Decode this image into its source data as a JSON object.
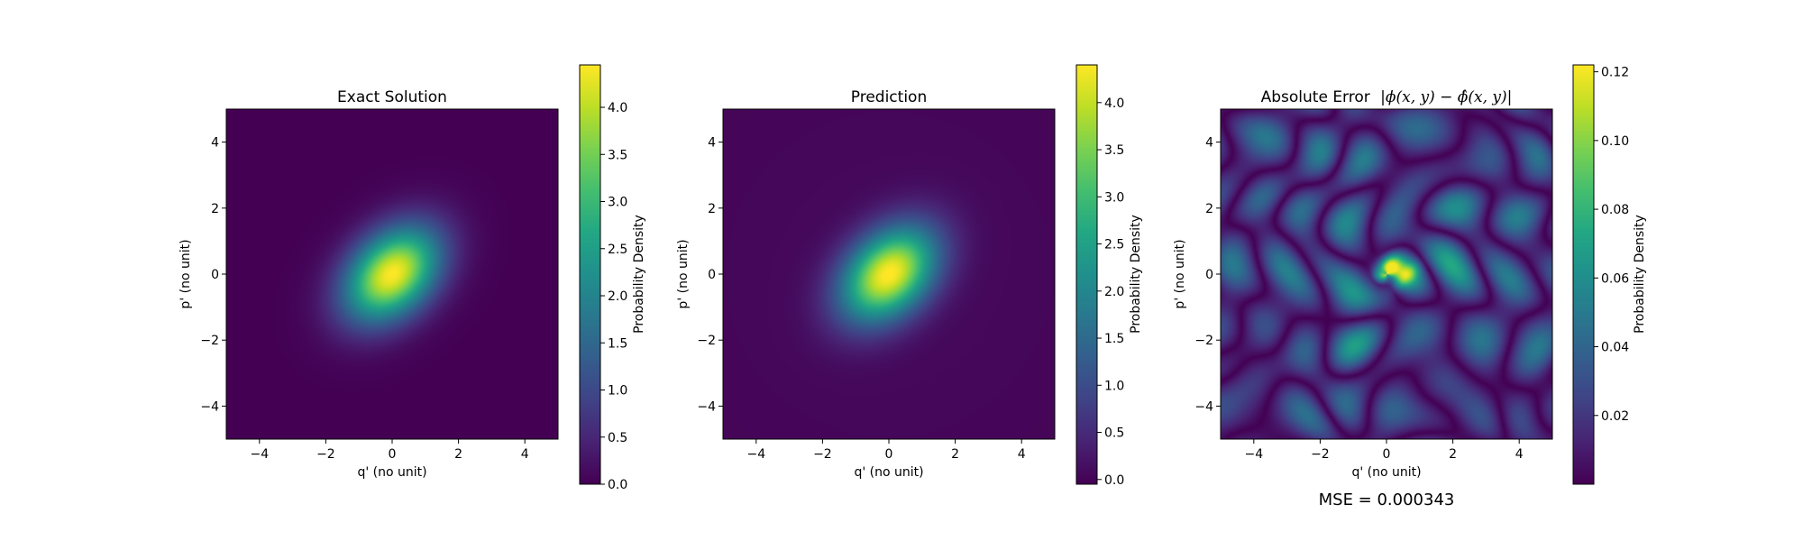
{
  "figure": {
    "mse_text": "MSE = 0.000343"
  },
  "chart_data": [
    {
      "type": "heatmap",
      "title": "Exact Solution",
      "xlabel": "q' (no unit)",
      "ylabel": "p' (no unit)",
      "xlim": [
        -5,
        5
      ],
      "ylim": [
        -5,
        5
      ],
      "x_ticks": [
        -4,
        -2,
        0,
        2,
        4
      ],
      "y_ticks": [
        -4,
        -2,
        0,
        2,
        4
      ],
      "colormap": "viridis",
      "colorbar": {
        "label": "Probability Density",
        "range": [
          0.0,
          4.45
        ],
        "ticks": [
          0.0,
          0.5,
          1.0,
          1.5,
          2.0,
          2.5,
          3.0,
          3.5,
          4.0
        ],
        "tick_labels": [
          "0.0",
          "0.5",
          "1.0",
          "1.5",
          "2.0",
          "2.5",
          "3.0",
          "3.5",
          "4.0"
        ]
      },
      "field": {
        "kind": "gaussian",
        "peak": 4.45,
        "center": [
          0,
          0
        ],
        "sigma_major": 1.15,
        "sigma_minor": 0.8,
        "angle_deg": 45
      }
    },
    {
      "type": "heatmap",
      "title": "Prediction",
      "xlabel": "q' (no unit)",
      "ylabel": "p' (no unit)",
      "xlim": [
        -5,
        5
      ],
      "ylim": [
        -5,
        5
      ],
      "x_ticks": [
        -4,
        -2,
        0,
        2,
        4
      ],
      "y_ticks": [
        -4,
        -2,
        0,
        2,
        4
      ],
      "colormap": "viridis",
      "colorbar": {
        "label": "Probability Density",
        "range": [
          -0.05,
          4.4
        ],
        "ticks": [
          0.0,
          0.5,
          1.0,
          1.5,
          2.0,
          2.5,
          3.0,
          3.5,
          4.0
        ],
        "tick_labels": [
          "0.0",
          "0.5",
          "1.0",
          "1.5",
          "2.0",
          "2.5",
          "3.0",
          "3.5",
          "4.0"
        ]
      },
      "field": {
        "kind": "gaussian",
        "peak": 4.4,
        "center": [
          0,
          0
        ],
        "sigma_major": 1.15,
        "sigma_minor": 0.8,
        "angle_deg": 45,
        "offset": 0.05
      }
    },
    {
      "type": "heatmap",
      "title": "Absolute Error",
      "title_math": "|ϕ(x, y) − ϕ̂(x, y)|",
      "xlabel": "q' (no unit)",
      "ylabel": "p' (no unit)",
      "xlim": [
        -5,
        5
      ],
      "ylim": [
        -5,
        5
      ],
      "x_ticks": [
        -4,
        -2,
        0,
        2,
        4
      ],
      "y_ticks": [
        -4,
        -2,
        0,
        2,
        4
      ],
      "colormap": "viridis",
      "colorbar": {
        "label": "Probability Density",
        "range": [
          0.0,
          0.122
        ],
        "ticks": [
          0.02,
          0.04,
          0.06,
          0.08,
          0.1,
          0.12
        ],
        "tick_labels": [
          "0.02",
          "0.04",
          "0.06",
          "0.08",
          "0.10",
          "0.12"
        ]
      },
      "field": {
        "kind": "error",
        "peak": 0.12,
        "peak_at": [
          0,
          0.2
        ]
      }
    }
  ]
}
